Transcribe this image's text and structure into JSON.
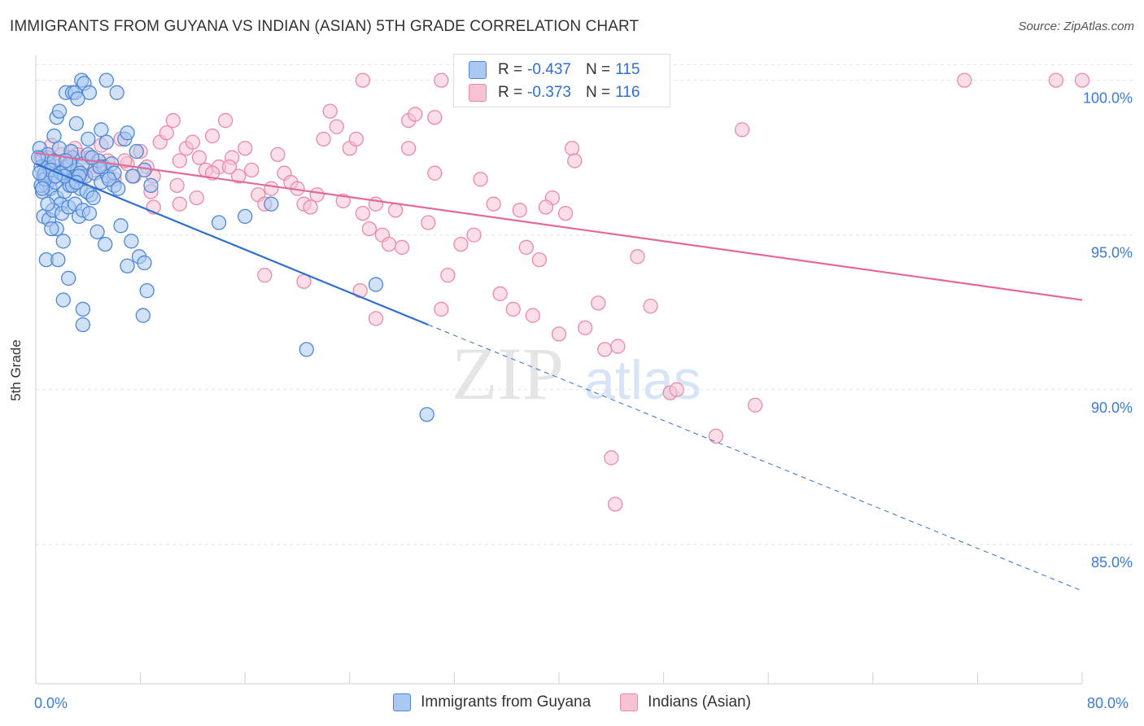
{
  "title": "IMMIGRANTS FROM GUYANA VS INDIAN (ASIAN) 5TH GRADE CORRELATION CHART",
  "source": "Source: ZipAtlas.com",
  "colors": {
    "blue_fill": "#aac8f2",
    "blue_stroke": "#4d86d6",
    "blue_line": "#2f6fd0",
    "pink_fill": "#f7c2d4",
    "pink_stroke": "#e98aab",
    "pink_line": "#e36a98",
    "grid": "#e3e3e3",
    "tick_label": "#3a7bd5"
  },
  "legend": {
    "rows": [
      {
        "r_label": "R =",
        "r_value": "-0.437",
        "n_label": "N =",
        "n_value": "115"
      },
      {
        "r_label": "R =",
        "r_value": "-0.373",
        "n_label": "N =",
        "n_value": "116"
      }
    ]
  },
  "bottom_legend": [
    "Immigrants from Guyana",
    "Indians (Asian)"
  ],
  "watermark": {
    "zip": "ZIP",
    "atlas": "atlas"
  },
  "chart_data": {
    "type": "scatter",
    "title": "IMMIGRANTS FROM GUYANA VS INDIAN (ASIAN) 5TH GRADE CORRELATION CHART",
    "xlabel": "",
    "ylabel": "5th Grade",
    "xlim": [
      0,
      80
    ],
    "ylim": [
      80.5,
      100.7
    ],
    "x_tick_labels": [
      "0.0%",
      "80.0%"
    ],
    "y_ticks": [
      85,
      90,
      95,
      100
    ],
    "y_tick_labels": [
      "85.0%",
      "90.0%",
      "95.0%",
      "100.0%"
    ],
    "grid": true,
    "legend_position": "top-center",
    "series": [
      {
        "name": "Immigrants from Guyana",
        "r": -0.437,
        "n": 115,
        "trend": {
          "x0": 0,
          "y0": 97.3,
          "x1": 30,
          "y1": 92.1,
          "dashed_to_x": 80,
          "dashed_to_y": 83.5
        },
        "points": [
          [
            0.3,
            97.8
          ],
          [
            0.5,
            97.5
          ],
          [
            0.4,
            97.2
          ],
          [
            0.6,
            96.9
          ],
          [
            0.8,
            96.6
          ],
          [
            0.5,
            96.4
          ],
          [
            0.7,
            97.0
          ],
          [
            1.0,
            97.3
          ],
          [
            1.2,
            96.8
          ],
          [
            1.1,
            96.5
          ],
          [
            0.9,
            97.6
          ],
          [
            1.3,
            97.1
          ],
          [
            1.5,
            96.7
          ],
          [
            1.4,
            97.4
          ],
          [
            1.6,
            96.2
          ],
          [
            1.8,
            97.8
          ],
          [
            2.0,
            97.0
          ],
          [
            2.2,
            96.4
          ],
          [
            1.9,
            96.0
          ],
          [
            2.4,
            97.2
          ],
          [
            2.6,
            96.6
          ],
          [
            2.8,
            97.5
          ],
          [
            3.0,
            96.8
          ],
          [
            3.2,
            97.1
          ],
          [
            3.4,
            96.5
          ],
          [
            3.6,
            97.3
          ],
          [
            3.8,
            96.9
          ],
          [
            4.0,
            97.6
          ],
          [
            4.2,
            96.3
          ],
          [
            4.5,
            97.0
          ],
          [
            4.8,
            97.4
          ],
          [
            5.0,
            96.7
          ],
          [
            5.2,
            97.2
          ],
          [
            5.5,
            96.9
          ],
          [
            5.8,
            97.3
          ],
          [
            6.0,
            96.6
          ],
          [
            0.6,
            95.6
          ],
          [
            1.0,
            95.5
          ],
          [
            1.3,
            95.8
          ],
          [
            1.6,
            95.2
          ],
          [
            2.0,
            95.7
          ],
          [
            2.5,
            95.9
          ],
          [
            3.0,
            96.0
          ],
          [
            3.3,
            95.6
          ],
          [
            3.6,
            95.8
          ],
          [
            4.1,
            95.7
          ],
          [
            4.7,
            95.1
          ],
          [
            5.3,
            94.7
          ],
          [
            6.5,
            95.3
          ],
          [
            7.3,
            94.8
          ],
          [
            0.8,
            94.2
          ],
          [
            1.7,
            94.2
          ],
          [
            2.1,
            94.8
          ],
          [
            2.5,
            93.6
          ],
          [
            2.1,
            92.9
          ],
          [
            3.6,
            92.6
          ],
          [
            3.6,
            92.1
          ],
          [
            7.0,
            94.0
          ],
          [
            7.9,
            94.3
          ],
          [
            8.3,
            94.1
          ],
          [
            8.5,
            93.2
          ],
          [
            8.2,
            92.4
          ],
          [
            1.6,
            98.8
          ],
          [
            1.8,
            99.0
          ],
          [
            2.3,
            99.6
          ],
          [
            2.8,
            99.6
          ],
          [
            3.0,
            99.6
          ],
          [
            3.5,
            100.0
          ],
          [
            3.7,
            99.9
          ],
          [
            4.1,
            99.6
          ],
          [
            5.4,
            100.0
          ],
          [
            6.2,
            99.6
          ],
          [
            3.2,
            99.4
          ],
          [
            3.1,
            98.6
          ],
          [
            5.0,
            98.4
          ],
          [
            6.8,
            98.1
          ],
          [
            7.0,
            98.3
          ],
          [
            7.7,
            97.7
          ],
          [
            8.3,
            97.1
          ],
          [
            8.8,
            96.6
          ],
          [
            5.4,
            98.0
          ],
          [
            4.0,
            98.1
          ],
          [
            6.0,
            97.0
          ],
          [
            1.4,
            98.2
          ],
          [
            2.6,
            97.3
          ],
          [
            3.4,
            97.0
          ],
          [
            0.4,
            96.6
          ],
          [
            0.7,
            96.8
          ],
          [
            1.1,
            97.1
          ],
          [
            0.2,
            97.5
          ],
          [
            1.9,
            97.0
          ],
          [
            2.8,
            96.6
          ],
          [
            3.9,
            96.4
          ],
          [
            4.4,
            96.2
          ],
          [
            5.6,
            96.8
          ],
          [
            7.4,
            96.9
          ],
          [
            14.0,
            95.4
          ],
          [
            16.0,
            95.6
          ],
          [
            18.0,
            96.0
          ],
          [
            26.0,
            93.4
          ],
          [
            20.7,
            91.3
          ],
          [
            29.9,
            89.2
          ],
          [
            0.3,
            97.0
          ],
          [
            0.9,
            96.0
          ],
          [
            1.2,
            95.2
          ],
          [
            2.2,
            96.9
          ],
          [
            2.7,
            97.7
          ],
          [
            3.3,
            96.9
          ],
          [
            4.9,
            97.2
          ],
          [
            6.3,
            96.5
          ],
          [
            0.5,
            96.5
          ],
          [
            1.5,
            96.9
          ],
          [
            2.3,
            97.4
          ],
          [
            3.1,
            96.7
          ],
          [
            4.3,
            97.5
          ]
        ]
      },
      {
        "name": "Indians (Asian)",
        "r": -0.373,
        "n": 116,
        "trend": {
          "x0": 0,
          "y0": 97.65,
          "x1": 80,
          "y1": 92.9
        },
        "points": [
          [
            0.4,
            97.5
          ],
          [
            0.8,
            97.2
          ],
          [
            1.2,
            97.9
          ],
          [
            1.6,
            97.0
          ],
          [
            2.0,
            97.6
          ],
          [
            2.5,
            97.3
          ],
          [
            3.0,
            97.8
          ],
          [
            3.5,
            96.9
          ],
          [
            4.0,
            97.5
          ],
          [
            4.5,
            97.1
          ],
          [
            5.0,
            97.9
          ],
          [
            5.5,
            97.4
          ],
          [
            6.0,
            96.8
          ],
          [
            6.5,
            98.1
          ],
          [
            7.0,
            97.3
          ],
          [
            7.5,
            96.9
          ],
          [
            8.0,
            97.7
          ],
          [
            8.5,
            97.2
          ],
          [
            9.0,
            96.9
          ],
          [
            9.5,
            98.0
          ],
          [
            10.0,
            98.3
          ],
          [
            10.5,
            98.7
          ],
          [
            11.0,
            97.4
          ],
          [
            11.5,
            97.8
          ],
          [
            12.0,
            98.0
          ],
          [
            12.5,
            97.5
          ],
          [
            13.0,
            97.1
          ],
          [
            13.5,
            98.2
          ],
          [
            14.0,
            97.2
          ],
          [
            14.5,
            98.7
          ],
          [
            15.0,
            97.5
          ],
          [
            15.5,
            96.9
          ],
          [
            16.0,
            97.8
          ],
          [
            16.5,
            97.1
          ],
          [
            17.0,
            96.3
          ],
          [
            17.5,
            96.0
          ],
          [
            18.0,
            96.5
          ],
          [
            18.5,
            97.6
          ],
          [
            19.0,
            97.0
          ],
          [
            19.5,
            96.7
          ],
          [
            20.0,
            96.5
          ],
          [
            20.5,
            96.0
          ],
          [
            21.0,
            95.9
          ],
          [
            21.5,
            96.3
          ],
          [
            22.0,
            98.1
          ],
          [
            22.5,
            99.0
          ],
          [
            23.0,
            98.5
          ],
          [
            23.5,
            96.1
          ],
          [
            24.0,
            97.8
          ],
          [
            24.5,
            98.1
          ],
          [
            25.0,
            95.7
          ],
          [
            25.5,
            95.2
          ],
          [
            26.0,
            96.0
          ],
          [
            26.5,
            95.0
          ],
          [
            27.0,
            94.7
          ],
          [
            27.5,
            95.8
          ],
          [
            28.5,
            98.7
          ],
          [
            29.0,
            98.9
          ],
          [
            30.0,
            95.4
          ],
          [
            30.5,
            97.0
          ],
          [
            31.0,
            92.6
          ],
          [
            31.5,
            93.7
          ],
          [
            32.5,
            94.7
          ],
          [
            33.5,
            95.0
          ],
          [
            34.0,
            96.8
          ],
          [
            35.0,
            96.0
          ],
          [
            35.5,
            93.1
          ],
          [
            36.5,
            92.6
          ],
          [
            37.0,
            95.8
          ],
          [
            37.5,
            94.6
          ],
          [
            38.0,
            92.4
          ],
          [
            38.5,
            94.2
          ],
          [
            39.5,
            96.2
          ],
          [
            39.0,
            95.9
          ],
          [
            40.0,
            91.8
          ],
          [
            40.5,
            95.7
          ],
          [
            41.0,
            97.8
          ],
          [
            41.2,
            97.4
          ],
          [
            42.0,
            92.0
          ],
          [
            43.0,
            92.8
          ],
          [
            43.5,
            91.3
          ],
          [
            44.5,
            91.4
          ],
          [
            44.0,
            87.8
          ],
          [
            44.3,
            86.3
          ],
          [
            47.0,
            92.7
          ],
          [
            46.0,
            94.3
          ],
          [
            48.5,
            89.9
          ],
          [
            49.0,
            90.0
          ],
          [
            52.0,
            88.5
          ],
          [
            55.0,
            89.5
          ],
          [
            54.0,
            98.4
          ],
          [
            71.0,
            100.0
          ],
          [
            78.0,
            100.0
          ],
          [
            80.0,
            100.0
          ],
          [
            31.0,
            100.0
          ],
          [
            25.0,
            100.0
          ],
          [
            9.0,
            95.9
          ],
          [
            11.0,
            96.0
          ],
          [
            12.3,
            96.2
          ],
          [
            14.8,
            97.2
          ],
          [
            17.5,
            93.7
          ],
          [
            20.5,
            93.5
          ],
          [
            24.8,
            93.2
          ],
          [
            26.0,
            92.3
          ],
          [
            28.0,
            94.6
          ],
          [
            30.5,
            98.8
          ],
          [
            28.5,
            97.8
          ],
          [
            0.9,
            97.5
          ],
          [
            1.6,
            97.2
          ],
          [
            2.4,
            97.1
          ],
          [
            3.2,
            97.6
          ],
          [
            4.8,
            97.2
          ],
          [
            6.8,
            97.4
          ],
          [
            8.8,
            96.4
          ],
          [
            10.8,
            96.6
          ],
          [
            13.5,
            97.0
          ]
        ]
      }
    ]
  }
}
